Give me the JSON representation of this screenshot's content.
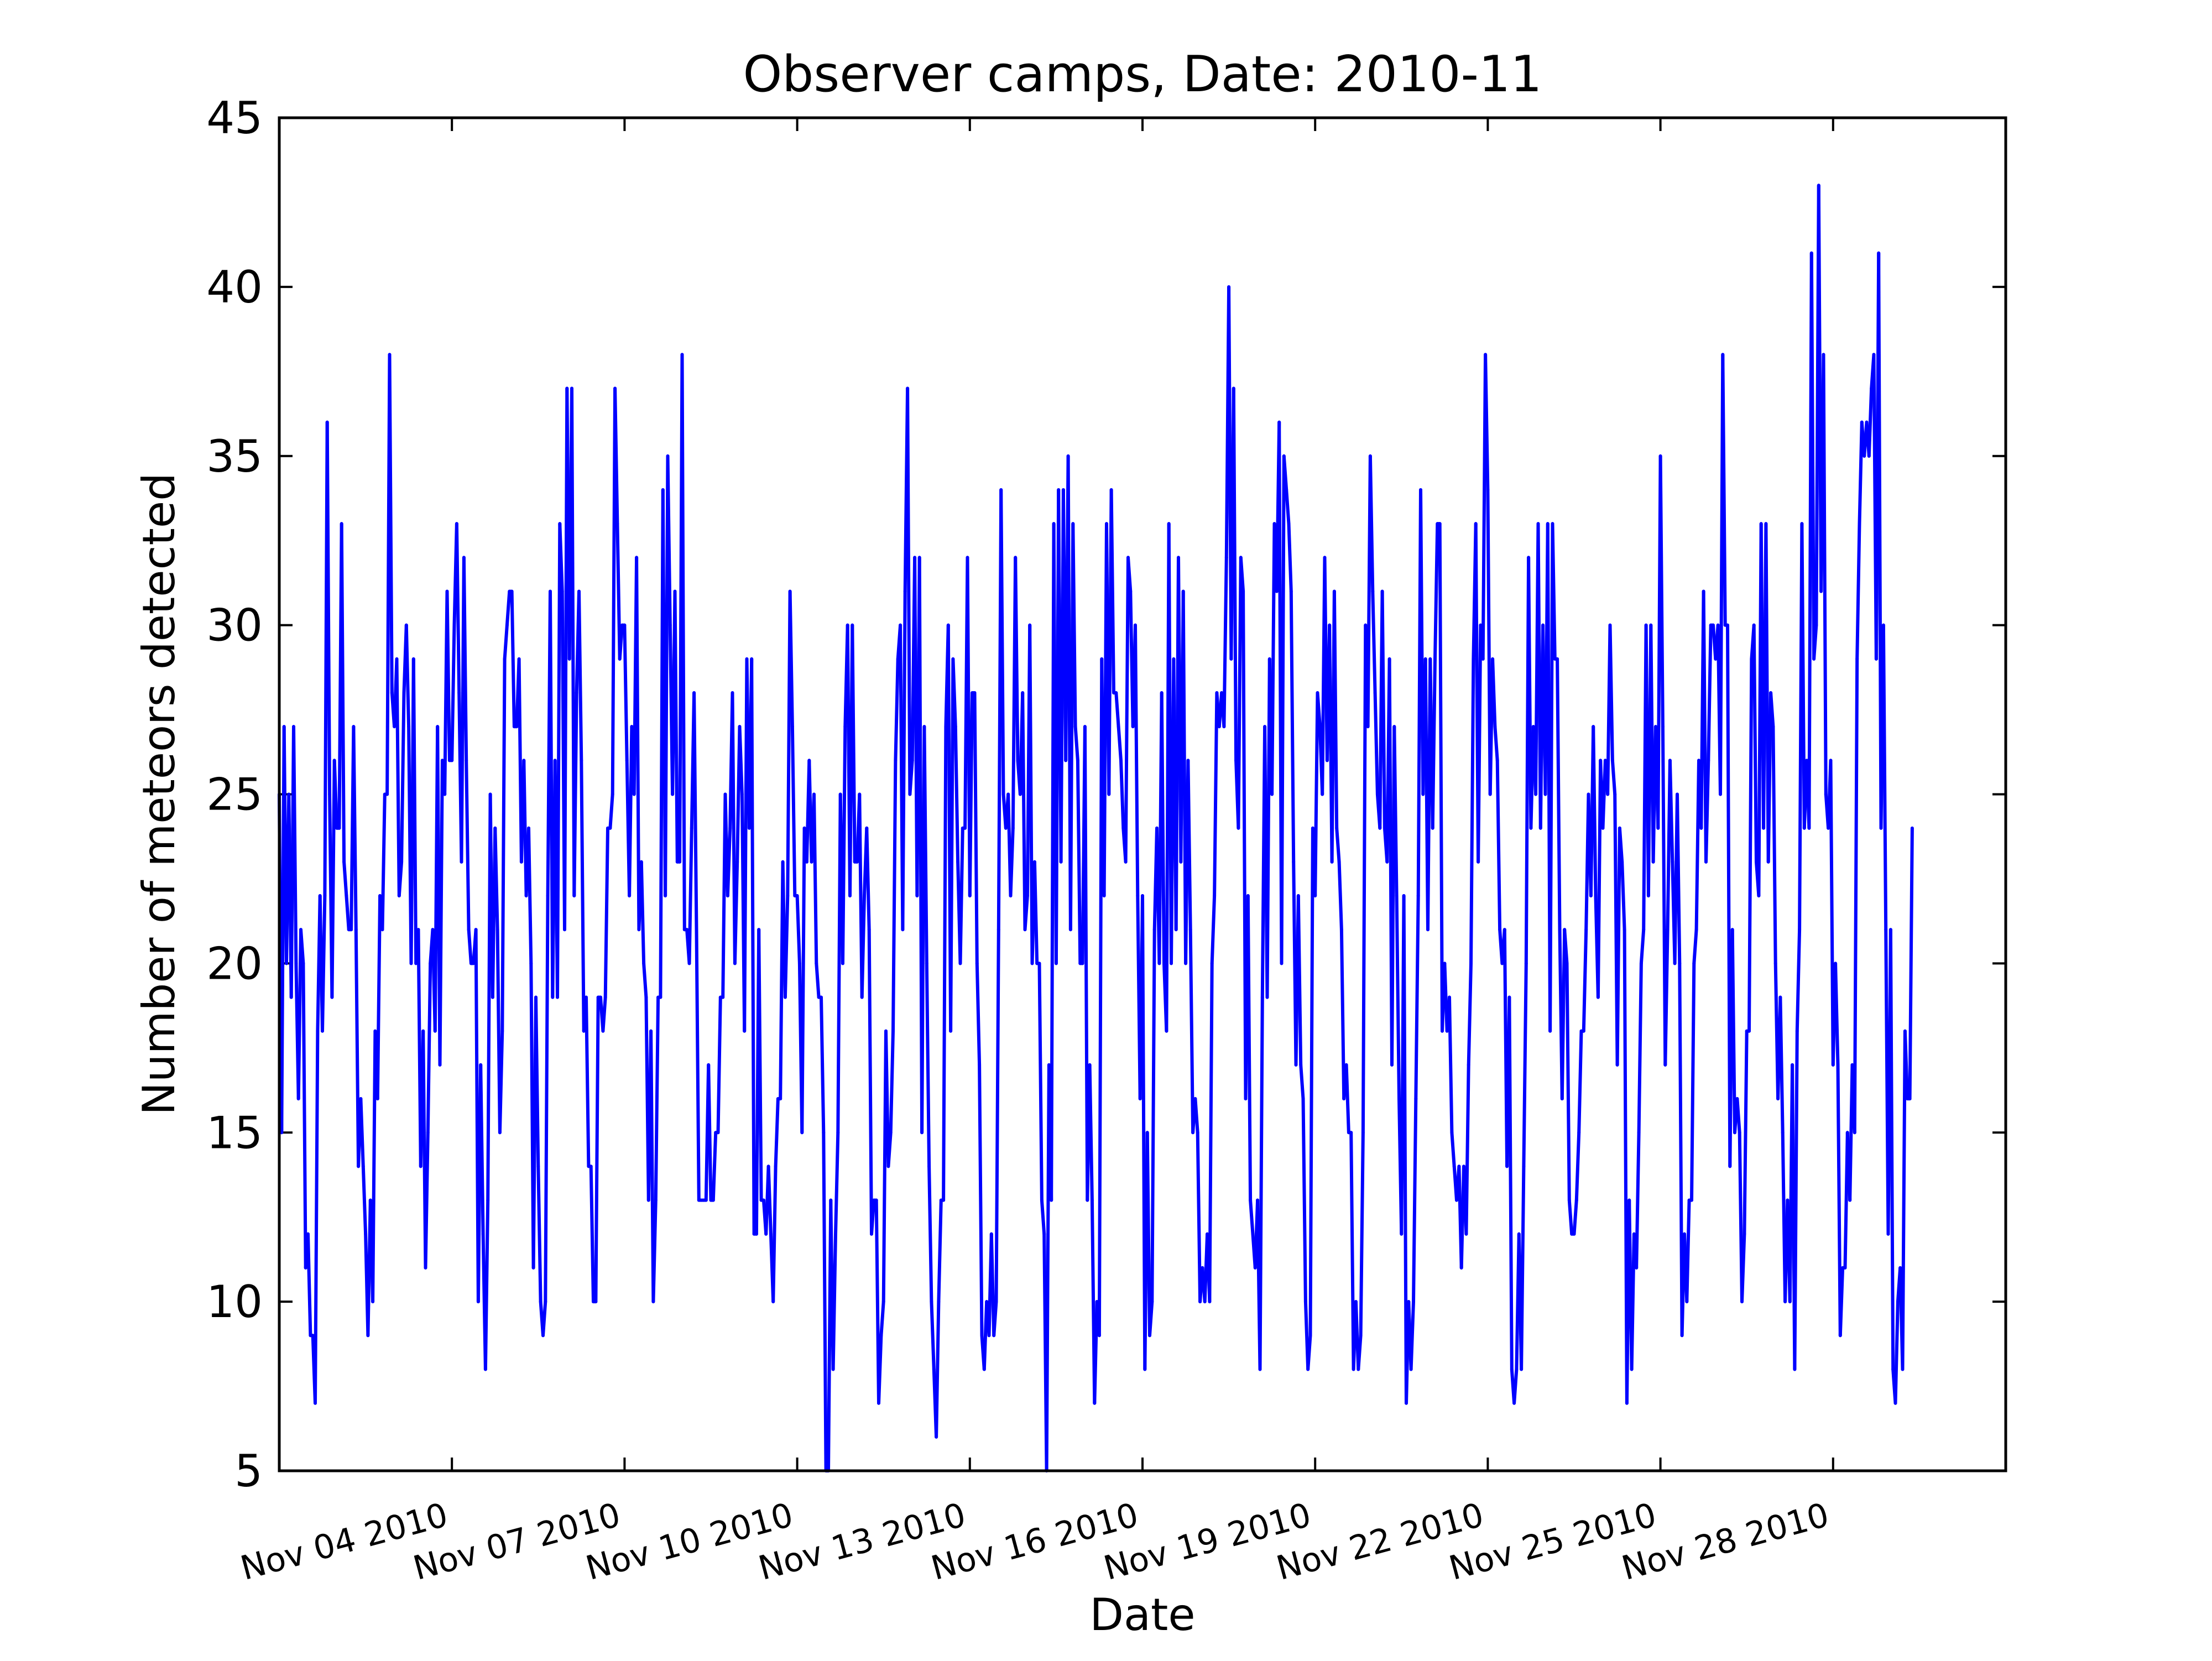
{
  "chart_data": {
    "type": "line",
    "title": "Observer camps, Date: 2010-11",
    "xlabel": "Date",
    "ylabel": "Number of meteors detected",
    "x_range": [
      "2010-11-01T00:00",
      "2010-12-01T00:00"
    ],
    "ylim": [
      5,
      45
    ],
    "y_ticks": [
      5,
      10,
      15,
      20,
      25,
      30,
      35,
      40,
      45
    ],
    "x_ticks": [
      {
        "date": "2010-11-04",
        "label": "Nov 04 2010"
      },
      {
        "date": "2010-11-07",
        "label": "Nov 07 2010"
      },
      {
        "date": "2010-11-10",
        "label": "Nov 10 2010"
      },
      {
        "date": "2010-11-13",
        "label": "Nov 13 2010"
      },
      {
        "date": "2010-11-16",
        "label": "Nov 16 2010"
      },
      {
        "date": "2010-11-19",
        "label": "Nov 19 2010"
      },
      {
        "date": "2010-11-22",
        "label": "Nov 22 2010"
      },
      {
        "date": "2010-11-25",
        "label": "Nov 25 2010"
      },
      {
        "date": "2010-11-28",
        "label": "Nov 28 2010"
      }
    ],
    "grid": false,
    "legend": "none",
    "series": [
      {
        "color": "#0000ff",
        "x_start": "2010-11-01T00:00",
        "x_step_hours": 1,
        "values": [
          25,
          15,
          27,
          20,
          25,
          19,
          27,
          20,
          16,
          21,
          20,
          11,
          12,
          9,
          9,
          7,
          18,
          22,
          18,
          22,
          36,
          25,
          19,
          26,
          24,
          24,
          33,
          23,
          22,
          21,
          21,
          27,
          21,
          14,
          16,
          14,
          12,
          9,
          13,
          10,
          18,
          16,
          22,
          21,
          25,
          25,
          38,
          28,
          27,
          29,
          22,
          23,
          28,
          30,
          27,
          20,
          29,
          20,
          21,
          14,
          18,
          11,
          15,
          20,
          21,
          18,
          27,
          17,
          26,
          25,
          31,
          26,
          26,
          30,
          33,
          28,
          23,
          32,
          26,
          21,
          20,
          20,
          21,
          10,
          17,
          12,
          8,
          13,
          25,
          19,
          24,
          21,
          15,
          18,
          29,
          30,
          31,
          31,
          27,
          27,
          29,
          23,
          26,
          22,
          24,
          20,
          11,
          19,
          14,
          10,
          9,
          10,
          22,
          31,
          19,
          26,
          19,
          33,
          31,
          21,
          37,
          29,
          37,
          22,
          28,
          31,
          26,
          18,
          19,
          14,
          14,
          10,
          10,
          19,
          19,
          18,
          19,
          24,
          24,
          25,
          37,
          33,
          29,
          30,
          30,
          26,
          22,
          27,
          25,
          32,
          21,
          23,
          20,
          19,
          13,
          18,
          10,
          13,
          19,
          19,
          34,
          22,
          35,
          30,
          25,
          31,
          23,
          23,
          38,
          21,
          21,
          20,
          24,
          28,
          21,
          13,
          13,
          13,
          13,
          17,
          13,
          13,
          15,
          15,
          19,
          19,
          25,
          22,
          24,
          28,
          20,
          23,
          27,
          25,
          18,
          29,
          24,
          29,
          12,
          12,
          21,
          13,
          13,
          12,
          14,
          12,
          10,
          14,
          16,
          16,
          23,
          19,
          22,
          31,
          27,
          22,
          22,
          20,
          15,
          24,
          23,
          26,
          23,
          25,
          20,
          19,
          19,
          15,
          5,
          5,
          13,
          8,
          12,
          15,
          25,
          20,
          27,
          30,
          22,
          30,
          23,
          23,
          25,
          19,
          22,
          24,
          21,
          12,
          13,
          13,
          7,
          9,
          10,
          18,
          14,
          15,
          18,
          26,
          29,
          30,
          21,
          31,
          37,
          25,
          26,
          32,
          22,
          32,
          15,
          27,
          20,
          14,
          10,
          8,
          6,
          10,
          13,
          13,
          27,
          30,
          18,
          29,
          27,
          23,
          20,
          24,
          24,
          32,
          22,
          28,
          28,
          20,
          17,
          9,
          8,
          10,
          9,
          12,
          9,
          10,
          21,
          34,
          25,
          24,
          25,
          22,
          24,
          32,
          26,
          25,
          28,
          21,
          22,
          30,
          20,
          23,
          20,
          20,
          13,
          12,
          5,
          17,
          13,
          33,
          20,
          34,
          23,
          34,
          26,
          35,
          21,
          33,
          27,
          26,
          20,
          20,
          27,
          13,
          17,
          13,
          7,
          10,
          9,
          29,
          22,
          33,
          25,
          34,
          28,
          28,
          27,
          26,
          24,
          23,
          32,
          31,
          27,
          30,
          22,
          16,
          22,
          8,
          15,
          9,
          10,
          21,
          24,
          20,
          28,
          20,
          18,
          33,
          20,
          29,
          21,
          32,
          23,
          31,
          20,
          26,
          21,
          15,
          16,
          15,
          10,
          11,
          10,
          12,
          10,
          20,
          22,
          28,
          27,
          28,
          27,
          32,
          40,
          29,
          37,
          26,
          24,
          32,
          31,
          16,
          22,
          13,
          12,
          11,
          13,
          8,
          19,
          27,
          19,
          29,
          25,
          33,
          31,
          36,
          20,
          35,
          34,
          33,
          31,
          23,
          17,
          22,
          17,
          16,
          10,
          8,
          9,
          24,
          22,
          28,
          27,
          25,
          32,
          26,
          30,
          23,
          31,
          24,
          23,
          21,
          16,
          17,
          15,
          15,
          8,
          10,
          8,
          9,
          15,
          30,
          27,
          35,
          31,
          28,
          25,
          24,
          31,
          24,
          23,
          29,
          17,
          27,
          22,
          16,
          12,
          22,
          7,
          10,
          8,
          10,
          16,
          22,
          34,
          25,
          29,
          21,
          29,
          24,
          29,
          33,
          33,
          18,
          20,
          18,
          19,
          15,
          14,
          13,
          14,
          11,
          14,
          12,
          17,
          20,
          29,
          33,
          23,
          30,
          29,
          38,
          34,
          25,
          29,
          27,
          26,
          21,
          20,
          21,
          14,
          19,
          8,
          7,
          8,
          12,
          8,
          14,
          20,
          32,
          24,
          27,
          25,
          33,
          24,
          30,
          25,
          33,
          18,
          33,
          29,
          29,
          21,
          16,
          21,
          20,
          13,
          12,
          12,
          13,
          15,
          18,
          18,
          21,
          25,
          22,
          27,
          22,
          19,
          26,
          24,
          26,
          25,
          30,
          26,
          25,
          17,
          24,
          23,
          21,
          7,
          13,
          8,
          12,
          11,
          15,
          20,
          21,
          30,
          22,
          30,
          23,
          27,
          24,
          35,
          27,
          17,
          21,
          26,
          23,
          20,
          25,
          20,
          9,
          12,
          10,
          13,
          13,
          20,
          21,
          26,
          24,
          31,
          23,
          26,
          30,
          30,
          29,
          30,
          25,
          38,
          30,
          30,
          14,
          21,
          15,
          16,
          15,
          10,
          12,
          18,
          18,
          29,
          30,
          23,
          22,
          33,
          24,
          33,
          23,
          28,
          27,
          20,
          16,
          19,
          15,
          10,
          13,
          10,
          17,
          8,
          18,
          21,
          33,
          24,
          26,
          24,
          41,
          29,
          30,
          43,
          31,
          38,
          25,
          24,
          26,
          17,
          20,
          17,
          9,
          11,
          11,
          15,
          13,
          17,
          15,
          29,
          33,
          36,
          35,
          36,
          35,
          37,
          38,
          29,
          41,
          24,
          30,
          21,
          12,
          21,
          8,
          7,
          10,
          11,
          8,
          18,
          16,
          16,
          24
        ]
      }
    ]
  }
}
